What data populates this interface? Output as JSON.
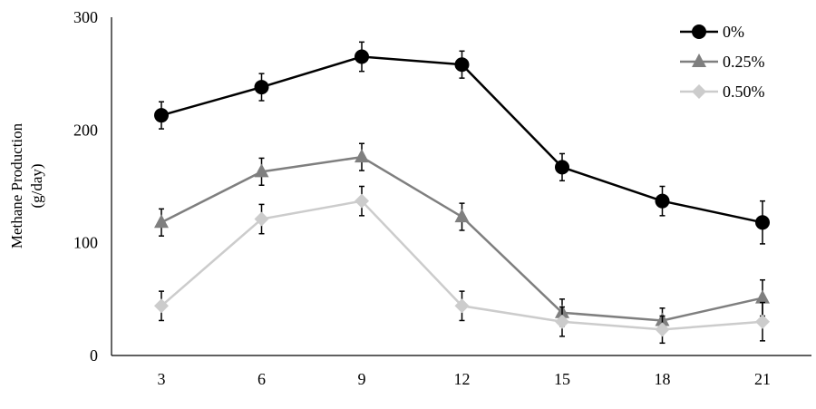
{
  "chart_data": {
    "type": "line",
    "title": "",
    "xlabel": "",
    "ylabel": "Methane Production",
    "ylabel_unit": "(g/day)",
    "x": [
      3,
      6,
      9,
      12,
      15,
      18,
      21
    ],
    "x_tick_labels": [
      "3",
      "6",
      "9",
      "12",
      "15",
      "18",
      "21"
    ],
    "ylim": [
      0,
      300
    ],
    "y_ticks": [
      0,
      100,
      200,
      300
    ],
    "y_tick_labels": [
      "0",
      "100",
      "200",
      "300"
    ],
    "grid": false,
    "legend_position": "top-right",
    "series": [
      {
        "name": "0%",
        "color": "#000000",
        "marker": "circle",
        "values": [
          213,
          238,
          265,
          258,
          167,
          137,
          118
        ],
        "errors": [
          12,
          12,
          13,
          12,
          12,
          13,
          19
        ]
      },
      {
        "name": "0.25%",
        "color": "#7f7f7f",
        "marker": "triangle",
        "values": [
          118,
          163,
          176,
          123,
          38,
          31,
          51
        ],
        "errors": [
          12,
          12,
          12,
          12,
          12,
          11,
          16
        ]
      },
      {
        "name": "0.50%",
        "color": "#cccccc",
        "marker": "diamond",
        "values": [
          44,
          121,
          137,
          44,
          30,
          23,
          30
        ],
        "errors": [
          13,
          13,
          13,
          13,
          13,
          12,
          17
        ]
      }
    ]
  }
}
